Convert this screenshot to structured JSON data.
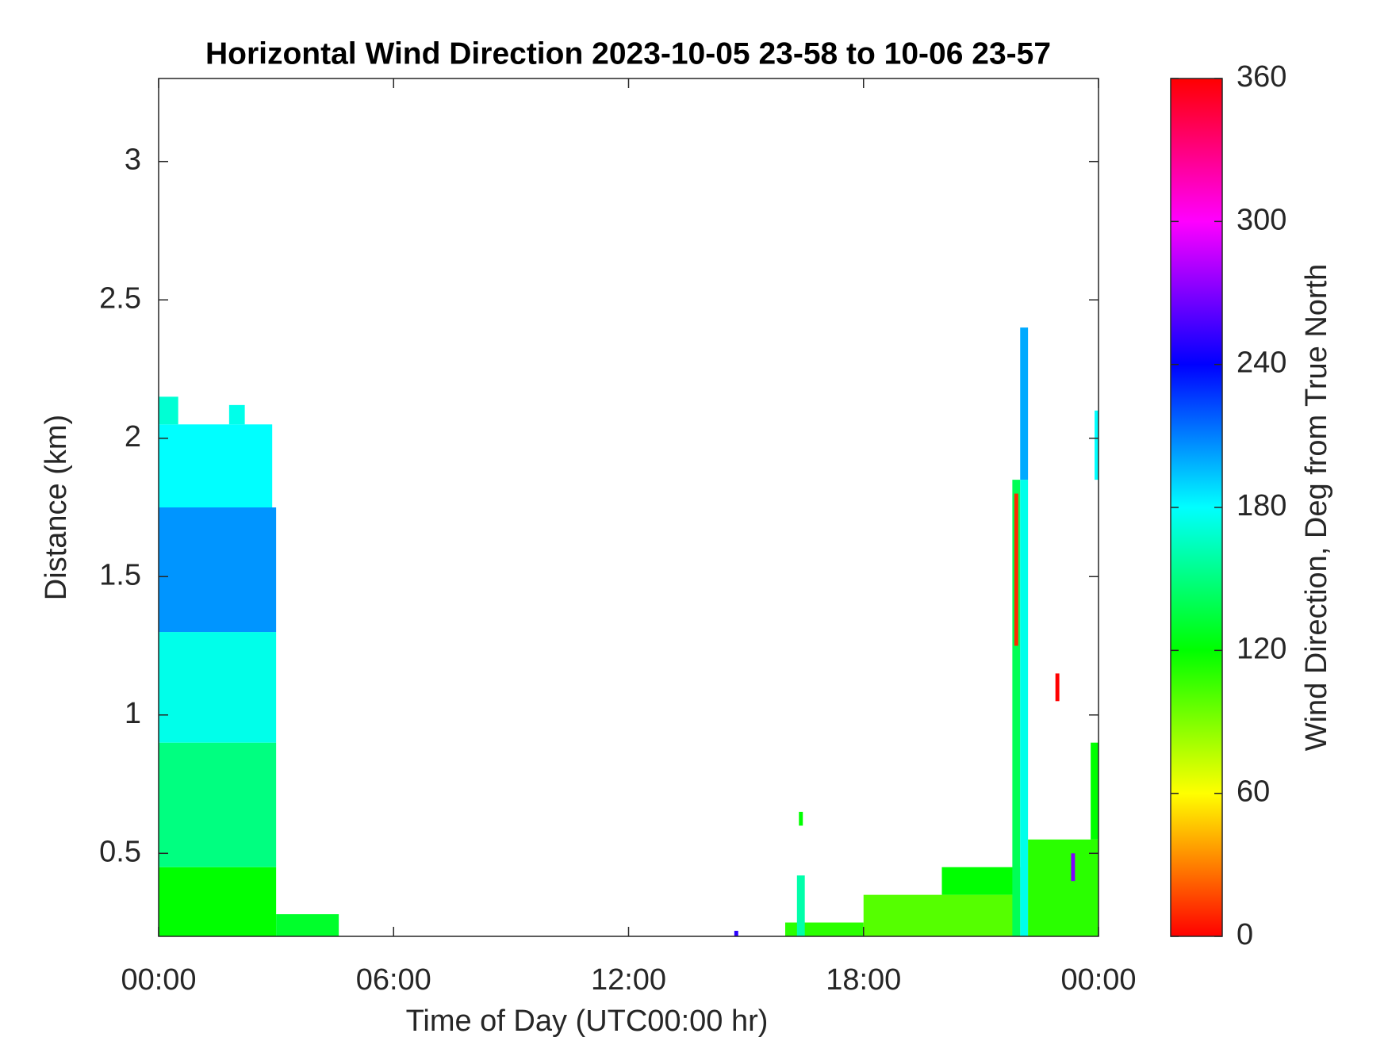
{
  "chart_data": {
    "type": "heatmap",
    "title": "Horizontal Wind Direction 2023-10-05 23-58 to 10-06 23-57",
    "x_label": "Time of Day (UTC00:00 hr)",
    "y_label": "Distance (km)",
    "xlim": [
      0,
      24
    ],
    "xticks": [
      {
        "value": 0,
        "label": "00:00"
      },
      {
        "value": 6,
        "label": "06:00"
      },
      {
        "value": 12,
        "label": "12:00"
      },
      {
        "value": 18,
        "label": "18:00"
      },
      {
        "value": 24,
        "label": "00:00"
      }
    ],
    "ylim": [
      0.2,
      3.3
    ],
    "yticks": [
      0.5,
      1,
      1.5,
      2,
      2.5,
      3
    ],
    "colormap": "hsv",
    "colorbar": {
      "label": "Wind Direction, Deg from True North",
      "clim": [
        0,
        360
      ],
      "ticks": [
        0,
        60,
        120,
        180,
        240,
        300,
        360
      ]
    },
    "cells": [
      {
        "x": [
          0,
          3
        ],
        "y": [
          0.2,
          0.45
        ],
        "value": 120
      },
      {
        "x": [
          0,
          3
        ],
        "y": [
          0.45,
          0.9
        ],
        "value": 150
      },
      {
        "x": [
          0,
          3
        ],
        "y": [
          0.9,
          1.3
        ],
        "value": 175
      },
      {
        "x": [
          0,
          3
        ],
        "y": [
          1.3,
          1.75
        ],
        "value": 205
      },
      {
        "x": [
          0,
          2.9
        ],
        "y": [
          1.75,
          2.05
        ],
        "value": 180
      },
      {
        "x": [
          0,
          0.5
        ],
        "y": [
          2.05,
          2.15
        ],
        "value": 170
      },
      {
        "x": [
          1.8,
          2.2
        ],
        "y": [
          2.05,
          2.12
        ],
        "value": 175
      },
      {
        "x": [
          3,
          4.6
        ],
        "y": [
          0.2,
          0.28
        ],
        "value": 130
      },
      {
        "x": [
          14.7,
          14.8
        ],
        "y": [
          0.2,
          0.22
        ],
        "value": 250
      },
      {
        "x": [
          16.0,
          18
        ],
        "y": [
          0.2,
          0.25
        ],
        "value": 110
      },
      {
        "x": [
          16.3,
          16.5
        ],
        "y": [
          0.2,
          0.42
        ],
        "value": 160
      },
      {
        "x": [
          16.35,
          16.45
        ],
        "y": [
          0.6,
          0.65
        ],
        "value": 120
      },
      {
        "x": [
          18,
          22
        ],
        "y": [
          0.2,
          0.35
        ],
        "value": 100
      },
      {
        "x": [
          20,
          22
        ],
        "y": [
          0.35,
          0.45
        ],
        "value": 120
      },
      {
        "x": [
          21.8,
          22.0
        ],
        "y": [
          0.2,
          1.85
        ],
        "value": 140
      },
      {
        "x": [
          21.85,
          21.95
        ],
        "y": [
          1.25,
          1.8
        ],
        "value": 10
      },
      {
        "x": [
          22.0,
          22.2
        ],
        "y": [
          0.2,
          1.85
        ],
        "value": 175
      },
      {
        "x": [
          22.0,
          22.2
        ],
        "y": [
          1.85,
          2.4
        ],
        "value": 200
      },
      {
        "x": [
          22.2,
          24
        ],
        "y": [
          0.2,
          0.55
        ],
        "value": 110
      },
      {
        "x": [
          22.9,
          23.0
        ],
        "y": [
          1.05,
          1.15
        ],
        "value": 0
      },
      {
        "x": [
          23.3,
          23.4
        ],
        "y": [
          0.4,
          0.5
        ],
        "value": 270
      },
      {
        "x": [
          23.8,
          24
        ],
        "y": [
          0.55,
          0.9
        ],
        "value": 120
      },
      {
        "x": [
          23.9,
          24
        ],
        "y": [
          1.85,
          2.1
        ],
        "value": 180
      }
    ]
  }
}
